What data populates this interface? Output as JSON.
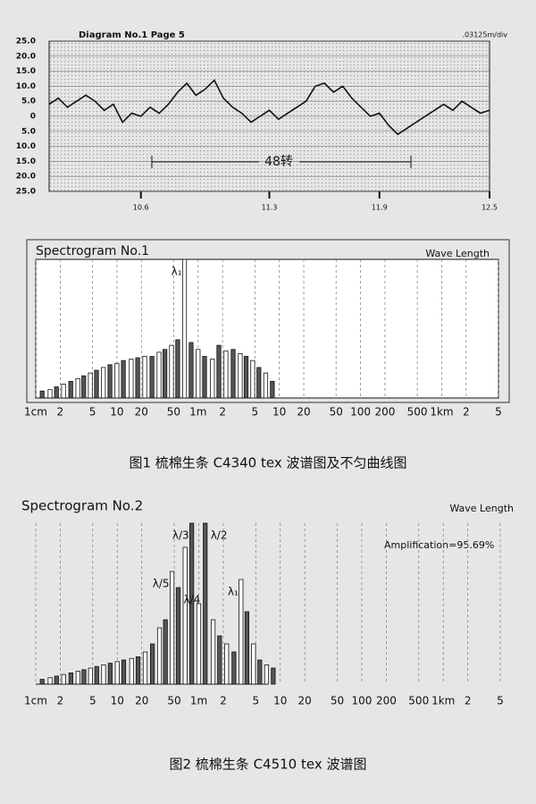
{
  "chart_data": [
    {
      "type": "line",
      "title": "Diagram No.1 Page 5",
      "annotations": [
        ".03125m/div",
        "48转"
      ],
      "x": [
        10.1,
        10.15,
        10.2,
        10.25,
        10.3,
        10.35,
        10.4,
        10.45,
        10.5,
        10.55,
        10.6,
        10.65,
        10.7,
        10.75,
        10.8,
        10.85,
        10.9,
        10.95,
        11.0,
        11.05,
        11.1,
        11.15,
        11.2,
        11.25,
        11.3,
        11.35,
        11.4,
        11.45,
        11.5,
        11.55,
        11.6,
        11.65,
        11.7,
        11.75,
        11.8,
        11.85,
        11.9,
        11.95,
        12.0,
        12.05,
        12.1,
        12.15,
        12.2,
        12.25,
        12.3,
        12.35,
        12.4,
        12.45,
        12.5
      ],
      "values": [
        4,
        6,
        3,
        5,
        7,
        5,
        2,
        4,
        -2,
        1,
        0,
        3,
        1,
        4,
        8,
        11,
        7,
        9,
        12,
        6,
        3,
        1,
        -2,
        0,
        2,
        -1,
        1,
        3,
        5,
        10,
        11,
        8,
        10,
        6,
        3,
        0,
        1,
        -3,
        -6,
        -4,
        -2,
        0,
        2,
        4,
        2,
        5,
        3,
        1,
        2
      ],
      "color": "#111111",
      "xlim": [
        10.1,
        12.5
      ],
      "xticks": [
        10.6,
        11.3,
        11.9,
        12.5
      ],
      "ylim": [
        -25,
        25
      ],
      "yticks": [
        {
          "value": 25,
          "label": "25.0"
        },
        {
          "value": 20,
          "label": "20.0"
        },
        {
          "value": 15,
          "label": "15.0"
        },
        {
          "value": 10,
          "label": "10.0"
        },
        {
          "value": 5,
          "label": "5.0"
        },
        0,
        {
          "value": -5,
          "label": "5.0"
        },
        {
          "value": -10,
          "label": "10.0"
        },
        {
          "value": -15,
          "label": "15.0"
        },
        {
          "value": -20,
          "label": "20.0"
        },
        {
          "value": -25,
          "label": "25.0"
        }
      ],
      "grid": true
    },
    {
      "type": "bar",
      "title": "Spectrogram No.1",
      "x_label": "Wave Length",
      "xscale": "log",
      "x": [
        0.012,
        0.015,
        0.018,
        0.022,
        0.027,
        0.033,
        0.039,
        0.047,
        0.056,
        0.068,
        0.082,
        0.1,
        0.12,
        0.15,
        0.18,
        0.22,
        0.27,
        0.33,
        0.39,
        0.47,
        0.56,
        0.68,
        0.82,
        1.0,
        1.2,
        1.5,
        1.8,
        2.2,
        2.7,
        3.3,
        3.9,
        4.7,
        5.6,
        6.8,
        8.2
      ],
      "values": [
        5,
        6,
        8,
        10,
        12,
        14,
        16,
        18,
        20,
        22,
        24,
        25,
        27,
        28,
        29,
        30,
        30,
        33,
        35,
        38,
        42,
        100,
        40,
        35,
        30,
        28,
        38,
        34,
        35,
        32,
        30,
        27,
        22,
        18,
        12
      ],
      "color": "#555555",
      "ylim": [
        0,
        100
      ],
      "xlim": [
        0.01,
        5000
      ],
      "xticks": [
        {
          "value": 0.01,
          "label": "1cm"
        },
        {
          "value": 0.02,
          "label": "2"
        },
        {
          "value": 0.05,
          "label": "5"
        },
        {
          "value": 0.1,
          "label": "10"
        },
        {
          "value": 0.2,
          "label": "20"
        },
        {
          "value": 0.5,
          "label": "50"
        },
        {
          "value": 1,
          "label": "1m"
        },
        2,
        5,
        10,
        20,
        50,
        100,
        200,
        500,
        {
          "value": 1000,
          "label": "1km"
        },
        {
          "value": 2000,
          "label": "2"
        },
        {
          "value": 5000,
          "label": "5"
        }
      ],
      "grid": true,
      "annotations": [
        {
          "text": "λ₁",
          "x": 0.68
        }
      ]
    },
    {
      "type": "bar",
      "title": "Spectrogram No.2",
      "x_label": "Wave Length",
      "note": "Amplification=95.69%",
      "xscale": "log",
      "x": [
        0.012,
        0.015,
        0.018,
        0.022,
        0.027,
        0.033,
        0.039,
        0.047,
        0.056,
        0.068,
        0.082,
        0.1,
        0.12,
        0.15,
        0.18,
        0.22,
        0.27,
        0.33,
        0.39,
        0.47,
        0.56,
        0.68,
        0.82,
        1.0,
        1.2,
        1.5,
        1.8,
        2.2,
        2.7,
        3.3,
        3.9,
        4.7,
        5.6,
        6.8,
        8.2
      ],
      "values": [
        3,
        4,
        5,
        6,
        7,
        8,
        9,
        10,
        11,
        12,
        13,
        14,
        15,
        16,
        17,
        20,
        25,
        35,
        40,
        70,
        60,
        85,
        100,
        50,
        100,
        40,
        30,
        25,
        20,
        65,
        45,
        25,
        15,
        12,
        10
      ],
      "color": "#555555",
      "ylim": [
        0,
        100
      ],
      "xlim": [
        0.01,
        5000
      ],
      "xticks": [
        {
          "value": 0.01,
          "label": "1cm"
        },
        {
          "value": 0.02,
          "label": "2"
        },
        {
          "value": 0.05,
          "label": "5"
        },
        {
          "value": 0.1,
          "label": "10"
        },
        {
          "value": 0.2,
          "label": "20"
        },
        {
          "value": 0.5,
          "label": "50"
        },
        {
          "value": 1,
          "label": "1m"
        },
        2,
        5,
        10,
        20,
        50,
        100,
        200,
        500,
        {
          "value": 1000,
          "label": "1km"
        },
        {
          "value": 2000,
          "label": "2"
        },
        {
          "value": 5000,
          "label": "5"
        }
      ],
      "grid": true,
      "annotations": [
        {
          "text": "λ/5",
          "x": 0.47
        },
        {
          "text": "λ/4",
          "x": 0.56
        },
        {
          "text": "λ/3",
          "x": 0.82
        },
        {
          "text": "λ/2",
          "x": 1.2
        },
        {
          "text": "λ₁",
          "x": 3.3
        }
      ]
    }
  ],
  "figure_captions": [
    "图1  梳棉生条 C4340 tex 波谱图及不匀曲线图",
    "图2  梳棉生条 C4510 tex 波谱图"
  ]
}
